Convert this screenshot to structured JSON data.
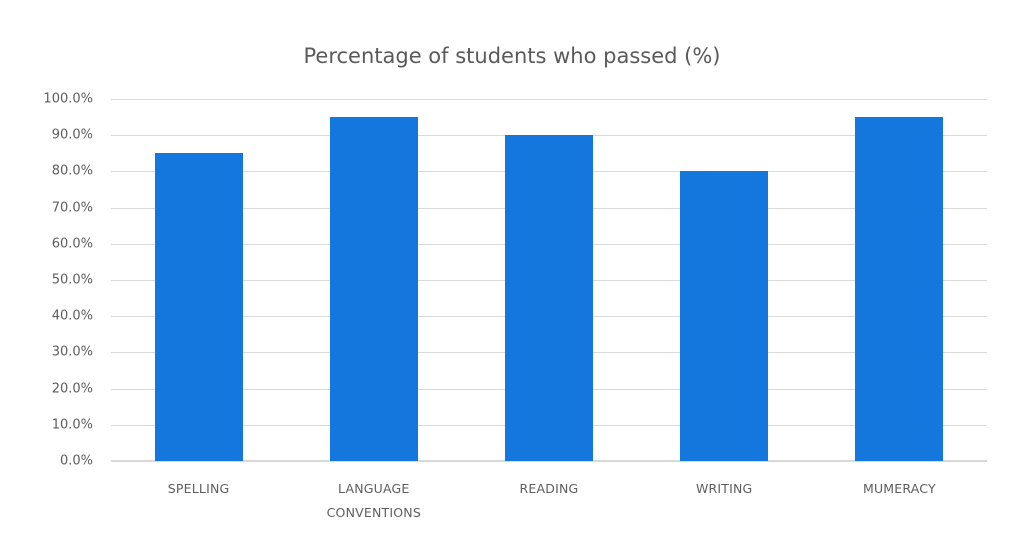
{
  "chart_data": {
    "type": "bar",
    "title": "Percentage of students who passed (%)",
    "xlabel": "",
    "ylabel": "",
    "categories": [
      "SPELLING",
      "LANGUAGE CONVENTIONS",
      "READING",
      "WRITING",
      "MUMERACY"
    ],
    "category_lines": [
      [
        "SPELLING"
      ],
      [
        "LANGUAGE",
        "CONVENTIONS"
      ],
      [
        "READING"
      ],
      [
        "WRITING"
      ],
      [
        "MUMERACY"
      ]
    ],
    "values": [
      85,
      95,
      90,
      80,
      95
    ],
    "ylim": [
      0,
      100
    ],
    "yticks": [
      "0.0%",
      "10.0%",
      "20.0%",
      "30.0%",
      "40.0%",
      "50.0%",
      "60.0%",
      "70.0%",
      "80.0%",
      "90.0%",
      "100.0%"
    ],
    "grid": true,
    "legend": "none",
    "bar_color": "#1477dd",
    "grid_color": "#d9d9d9"
  }
}
